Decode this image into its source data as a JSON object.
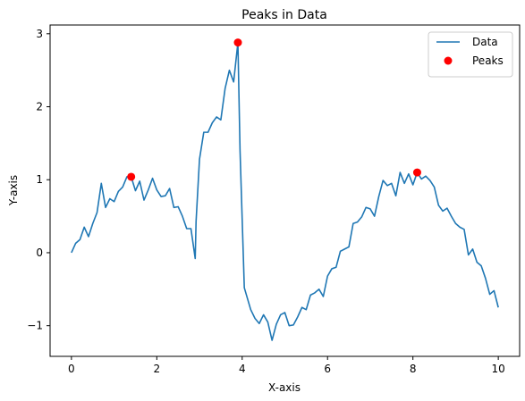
{
  "chart_data": {
    "type": "line",
    "title": "Peaks in Data",
    "xlabel": "X-axis",
    "ylabel": "Y-axis",
    "xlim": [
      -0.5,
      10.5
    ],
    "ylim": [
      -1.42,
      3.12
    ],
    "x_ticks": [
      0,
      2,
      4,
      6,
      8,
      10
    ],
    "y_ticks": [
      -1,
      0,
      1,
      2,
      3
    ],
    "x_tick_labels": [
      "0",
      "2",
      "4",
      "6",
      "8",
      "10"
    ],
    "y_tick_labels": [
      "−1",
      "0",
      "1",
      "2",
      "3"
    ],
    "grid": false,
    "legend_position": "top-right",
    "series": [
      {
        "name": "Data",
        "kind": "line",
        "color": "#1f77b4",
        "x": [
          0.0,
          0.1,
          0.2,
          0.3,
          0.4,
          0.5,
          0.6,
          0.7,
          0.8,
          0.9,
          1.0,
          1.1,
          1.2,
          1.3,
          1.4,
          1.5,
          1.6,
          1.7,
          1.8,
          1.9,
          2.0,
          2.1,
          2.2,
          2.3,
          2.4,
          2.5,
          2.6,
          2.7,
          2.8,
          2.9,
          2.92,
          3.0,
          3.1,
          3.2,
          3.3,
          3.4,
          3.5,
          3.6,
          3.7,
          3.8,
          3.9,
          3.95,
          4.05,
          4.2,
          4.3,
          4.4,
          4.5,
          4.6,
          4.7,
          4.8,
          4.9,
          5.0,
          5.1,
          5.2,
          5.3,
          5.4,
          5.5,
          5.6,
          5.7,
          5.8,
          5.9,
          6.0,
          6.1,
          6.2,
          6.3,
          6.4,
          6.5,
          6.6,
          6.7,
          6.8,
          6.9,
          7.0,
          7.1,
          7.2,
          7.3,
          7.4,
          7.5,
          7.6,
          7.7,
          7.8,
          7.9,
          8.0,
          8.1,
          8.2,
          8.3,
          8.4,
          8.5,
          8.6,
          8.7,
          8.8,
          8.9,
          9.0,
          9.1,
          9.2,
          9.3,
          9.4,
          9.5,
          9.6,
          9.7,
          9.8,
          9.9,
          10.0
        ],
        "y": [
          0.0,
          0.13,
          0.18,
          0.35,
          0.22,
          0.4,
          0.55,
          0.95,
          0.62,
          0.74,
          0.7,
          0.84,
          0.9,
          1.04,
          1.04,
          0.85,
          0.98,
          0.72,
          0.86,
          1.02,
          0.86,
          0.77,
          0.78,
          0.88,
          0.62,
          0.63,
          0.5,
          0.33,
          0.33,
          -0.08,
          0.43,
          1.28,
          1.65,
          1.65,
          1.78,
          1.86,
          1.82,
          2.25,
          2.5,
          2.34,
          2.88,
          1.4,
          -0.48,
          -0.78,
          -0.9,
          -0.97,
          -0.85,
          -0.95,
          -1.2,
          -0.98,
          -0.85,
          -0.82,
          -1.0,
          -0.99,
          -0.88,
          -0.75,
          -0.78,
          -0.58,
          -0.55,
          -0.5,
          -0.6,
          -0.32,
          -0.22,
          -0.2,
          0.02,
          0.05,
          0.08,
          0.4,
          0.42,
          0.49,
          0.62,
          0.6,
          0.5,
          0.77,
          0.99,
          0.92,
          0.95,
          0.78,
          1.1,
          0.95,
          1.08,
          0.93,
          1.1,
          1.01,
          1.05,
          0.99,
          0.9,
          0.65,
          0.57,
          0.61,
          0.5,
          0.4,
          0.35,
          0.32,
          -0.03,
          0.05,
          -0.13,
          -0.18,
          -0.35,
          -0.57,
          -0.52,
          -0.75
        ]
      },
      {
        "name": "Peaks",
        "kind": "scatter",
        "color": "#ff0000",
        "x": [
          1.4,
          3.9,
          8.1
        ],
        "y": [
          1.04,
          2.88,
          1.1
        ]
      }
    ]
  }
}
